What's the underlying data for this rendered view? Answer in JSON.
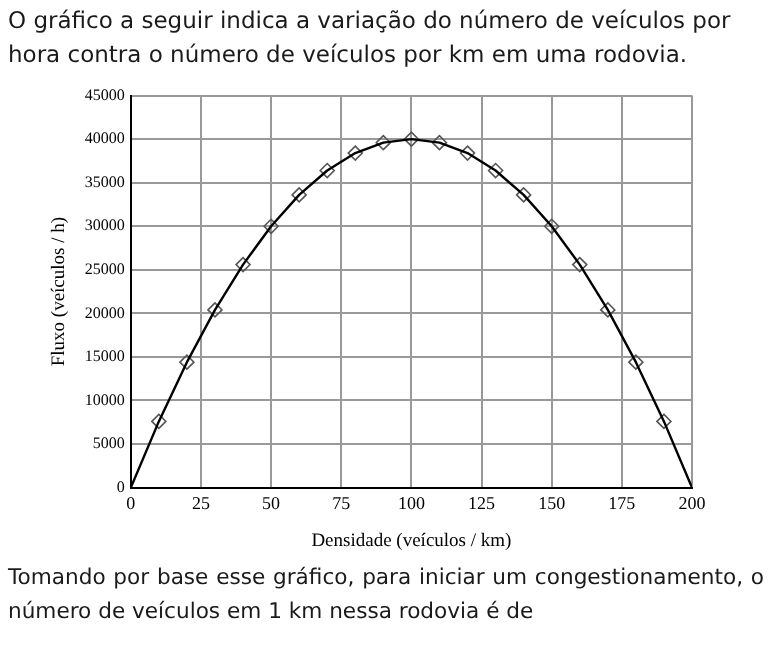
{
  "chart_data": {
    "type": "line",
    "title": "O gráfico a seguir indica a variação do número de veículos por hora contra o número de veículos por km em uma rodovia.",
    "xlabel": "Densidade (veículos / km)",
    "ylabel": "Fluxo (veículos / h)",
    "annotations": [
      "Tomando por base esse gráfico, para iniciar um congestionamento, o número de veículos em 1 km nessa rodovia é de"
    ],
    "series": [
      {
        "type": "line",
        "color": "#000000",
        "marker": "none",
        "x": [
          0,
          10,
          20,
          30,
          40,
          50,
          60,
          70,
          80,
          90,
          100,
          110,
          120,
          130,
          140,
          150,
          160,
          170,
          180,
          190,
          200
        ],
        "values": [
          0,
          7600,
          14400,
          20400,
          25600,
          30000,
          33600,
          36400,
          38400,
          39600,
          40000,
          39600,
          38400,
          36400,
          33600,
          30000,
          25600,
          20400,
          14400,
          7600,
          0
        ]
      },
      {
        "type": "scatter",
        "color": "#555555",
        "marker": "diamond",
        "x": [
          10,
          20,
          30,
          40,
          50,
          60,
          70,
          80,
          90,
          100,
          110,
          120,
          130,
          140,
          150,
          160,
          170,
          180,
          190
        ],
        "values": [
          7600,
          14400,
          20400,
          25600,
          30000,
          33600,
          36400,
          38400,
          39600,
          40000,
          39600,
          38400,
          36400,
          33600,
          30000,
          25600,
          20400,
          14400,
          7600
        ]
      }
    ],
    "xlim": [
      0,
      200
    ],
    "xticks": [
      0,
      25,
      50,
      75,
      100,
      125,
      150,
      175,
      200
    ],
    "ylim": [
      0,
      45000
    ],
    "yticks": [
      0,
      5000,
      10000,
      15000,
      20000,
      25000,
      30000,
      35000,
      40000,
      45000
    ],
    "grid": true,
    "legend": false
  }
}
